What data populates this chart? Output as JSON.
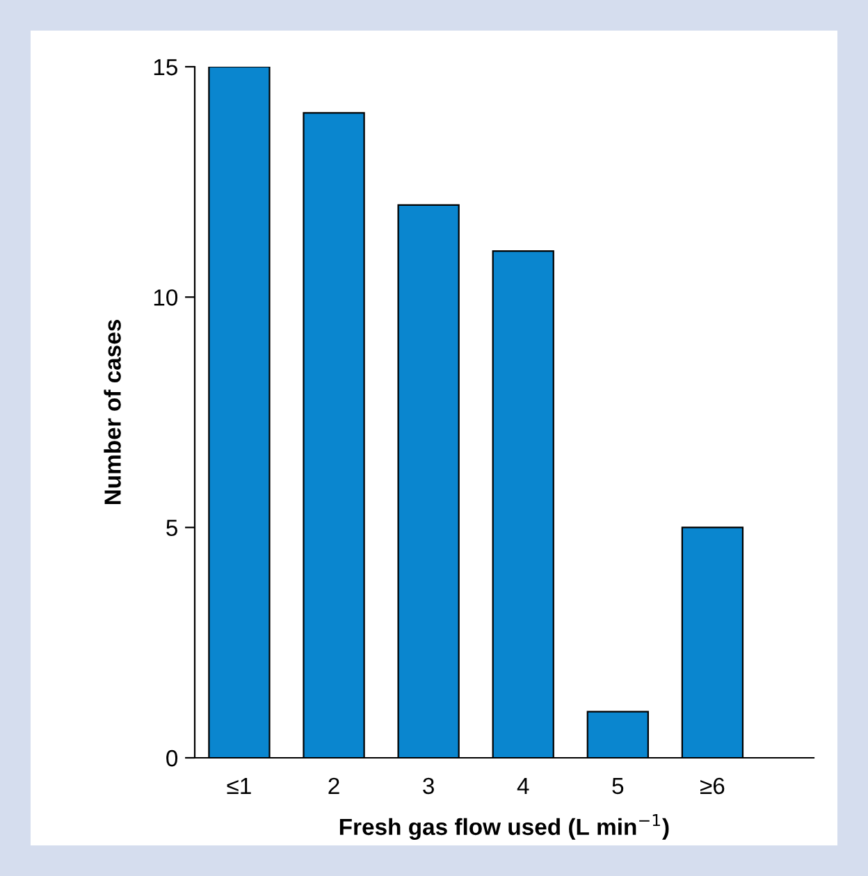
{
  "chart_data": {
    "type": "bar",
    "xlabel": "Fresh gas flow used (L min$^{−1}$)",
    "ylabel": "Number of cases",
    "categories": [
      "≤1",
      "2",
      "3",
      "4",
      "5",
      "≥6"
    ],
    "series": [
      {
        "color": "#0a86cf",
        "values": [
          15,
          14,
          12,
          11,
          1,
          5
        ]
      }
    ],
    "ylim": [
      0,
      15
    ],
    "yticks": [
      0,
      5,
      10,
      15
    ]
  }
}
